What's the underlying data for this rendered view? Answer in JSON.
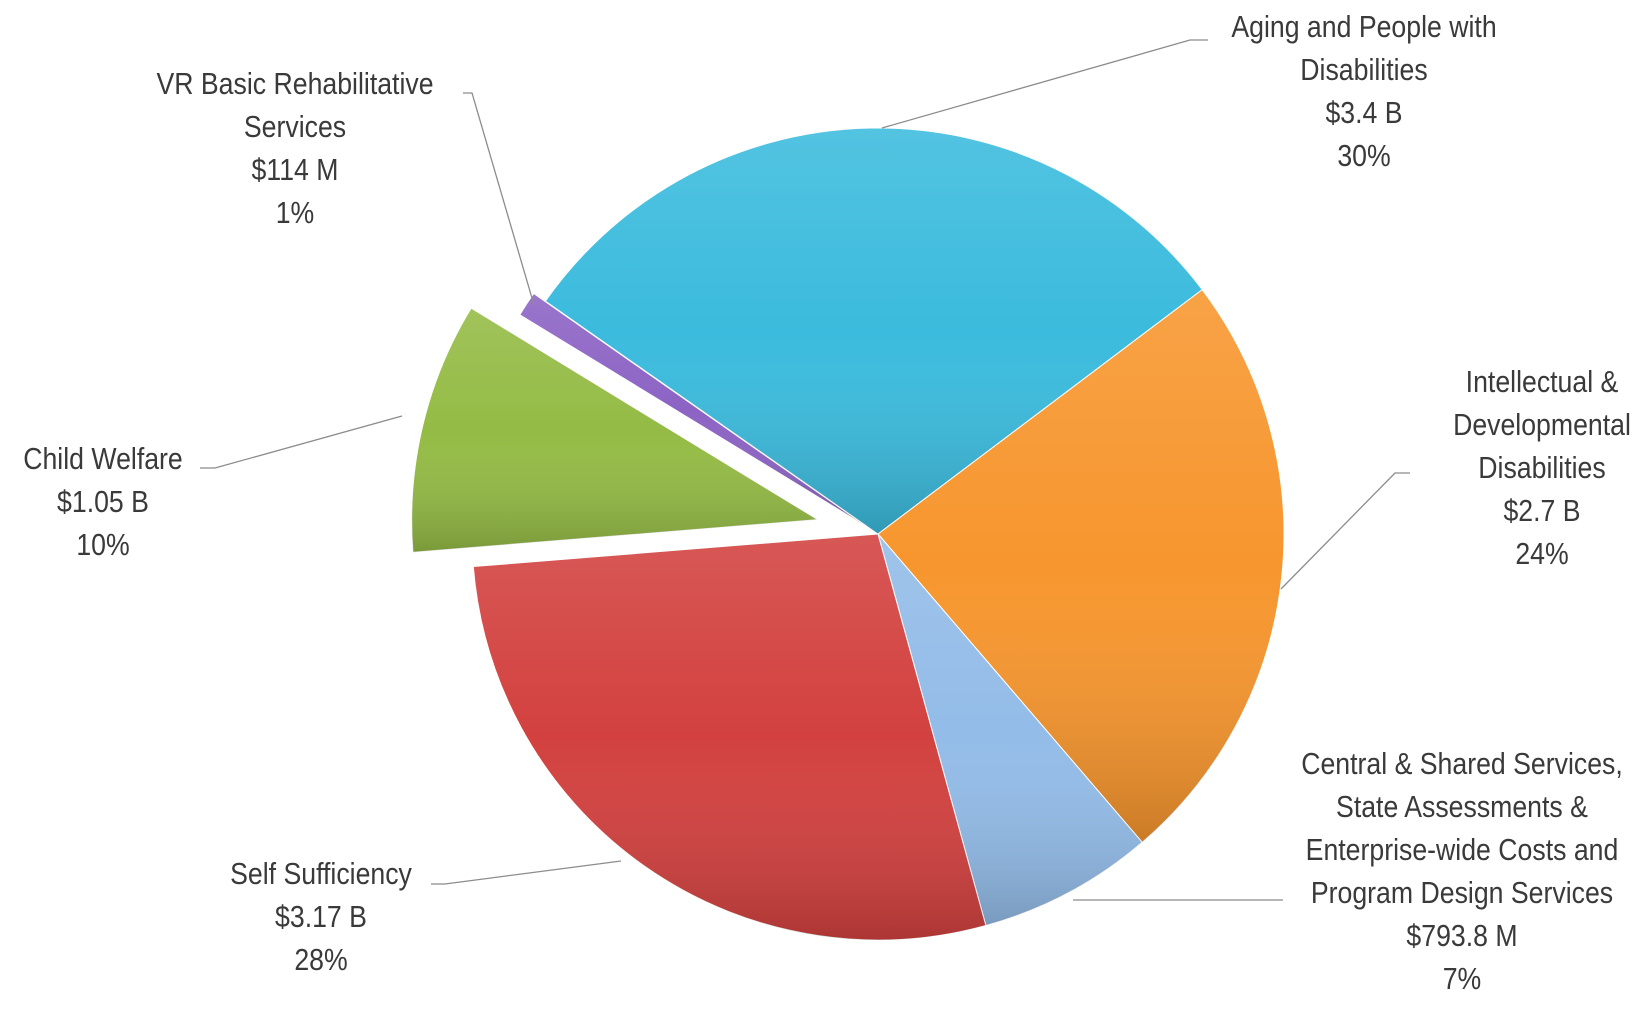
{
  "chart_data": {
    "type": "pie",
    "categories": [
      "Aging and People with Disabilities",
      "Intellectual & Developmental Disabilities",
      "Central & Shared Services, State Assessments & Enterprise-wide Costs and Program Design Services",
      "Self Sufficiency",
      "Child Welfare",
      "VR Basic Rehabilitative Services"
    ],
    "values": [
      30,
      24,
      7,
      28,
      10,
      1
    ],
    "value_labels": [
      "30%",
      "24%",
      "7%",
      "28%",
      "10%",
      "1%"
    ],
    "amount_labels": [
      "$3.4 B",
      "$2.7 B",
      "$793.8 M",
      "$3.17 B",
      "$1.05 B",
      "$114 M"
    ],
    "colors": [
      "#3bbbdd",
      "#f7962e",
      "#93bce8",
      "#d2413f",
      "#94bb45",
      "#8c63c4"
    ]
  }
}
